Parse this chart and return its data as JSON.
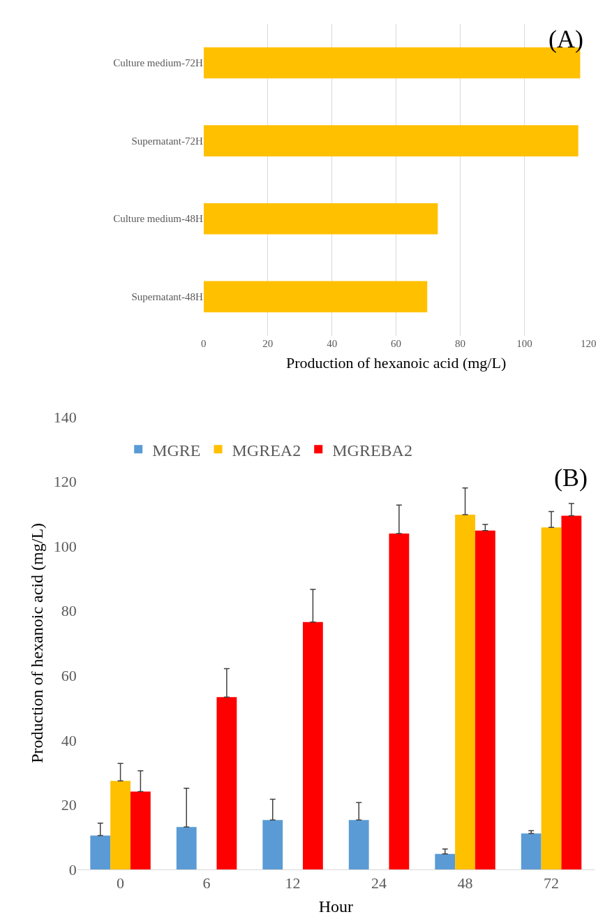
{
  "chart_data": [
    {
      "type": "bar",
      "orientation": "horizontal",
      "categories": [
        "Culture medium-72H",
        "Supernatant-72H",
        "Culture medium-48H",
        "Supernatant-48H"
      ],
      "values": [
        117.4,
        116.8,
        73.0,
        69.7
      ],
      "color": "#ffc000",
      "xlim": [
        0,
        120
      ],
      "xticks": [
        0,
        20,
        40,
        60,
        80,
        100,
        120
      ],
      "grid": "x",
      "xlabel": "Production of hexanoic acid (mg/L)",
      "annotations": [
        "(A)"
      ]
    },
    {
      "type": "bar",
      "categories": [
        "0",
        "6",
        "12",
        "24",
        "48",
        "72"
      ],
      "ylim": [
        0,
        140
      ],
      "yticks": [
        0,
        20,
        40,
        60,
        80,
        100,
        120,
        140
      ],
      "xlabel": "Hour",
      "ylabel": "Production of hexanoic acid (mg/L)",
      "legend": "top",
      "grid": false,
      "annotations": [
        "(B)"
      ],
      "series": [
        {
          "name": "MGRE",
          "color": "#5b9bd5",
          "values": [
            10.5,
            13.1,
            15.3,
            15.3,
            4.8,
            11.1
          ],
          "errors": [
            [
              10.5,
              14.3
            ],
            [
              13.1,
              25.1
            ],
            [
              15.3,
              21.7
            ],
            [
              15.3,
              20.7
            ],
            [
              4.8,
              6.3
            ],
            [
              11.1,
              12.0
            ]
          ]
        },
        {
          "name": "MGREA2",
          "color": "#ffc000",
          "values": [
            27.4,
            null,
            null,
            null,
            109.7,
            105.8
          ],
          "errors": [
            [
              27.4,
              32.8
            ],
            null,
            null,
            null,
            [
              109.7,
              118.0
            ],
            [
              105.8,
              110.7
            ]
          ]
        },
        {
          "name": "MGREBA2",
          "color": "#ff0000",
          "values": [
            24.1,
            53.3,
            76.5,
            103.9,
            104.8,
            109.4
          ],
          "errors": [
            [
              24.1,
              30.5
            ],
            [
              53.3,
              62.1
            ],
            [
              76.5,
              86.6
            ],
            [
              103.9,
              112.7
            ],
            [
              104.8,
              106.7
            ],
            [
              109.4,
              113.2
            ]
          ]
        }
      ]
    }
  ]
}
